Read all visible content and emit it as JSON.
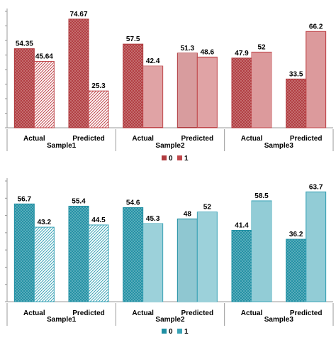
{
  "chart_data": [
    {
      "type": "bar",
      "palette": {
        "0": "#b03a3e",
        "1": "#c0474b"
      },
      "groups": [
        {
          "label": "Sample1",
          "categories": [
            "Actual",
            "Predicted"
          ]
        },
        {
          "label": "Sample2",
          "categories": [
            "Actual",
            "Predicted"
          ]
        },
        {
          "label": "Sample3",
          "categories": [
            "Actual",
            "Predicted"
          ]
        }
      ],
      "series": [
        {
          "name": "0",
          "values": [
            54.35,
            74.67,
            57.5,
            51.3,
            47.9,
            33.5
          ]
        },
        {
          "name": "1",
          "values": [
            45.64,
            25.3,
            42.4,
            48.6,
            52,
            66.2
          ]
        }
      ],
      "data_labels": {
        "0": [
          "54.35",
          "74.67",
          "57.5",
          "51.3",
          "47.9",
          "33.5"
        ],
        "1": [
          "45.64",
          "25.3",
          "42.4",
          "48.6",
          "52",
          "66.2"
        ]
      },
      "patterns": {
        "0": [
          "crosshatch",
          "crosshatch",
          "crosshatch",
          "hlines",
          "crosshatch",
          "crosshatch"
        ],
        "1": [
          "diagonal",
          "diagonal",
          "hlines",
          "hlines",
          "vlines",
          "vlines"
        ]
      },
      "ylim": [
        0,
        80
      ],
      "grid": false,
      "legend": {
        "position": "bottom",
        "entries": [
          "0",
          "1"
        ]
      }
    },
    {
      "type": "bar",
      "palette": {
        "0": "#1f8fa3",
        "1": "#3aa3b6"
      },
      "groups": [
        {
          "label": "Sample1",
          "categories": [
            "Actual",
            "Predicted"
          ]
        },
        {
          "label": "Sample2",
          "categories": [
            "Actual",
            "Predicted"
          ]
        },
        {
          "label": "Sample3",
          "categories": [
            "Actual",
            "Predicted"
          ]
        }
      ],
      "series": [
        {
          "name": "0",
          "values": [
            56.7,
            55.4,
            54.6,
            48,
            41.4,
            36.2
          ]
        },
        {
          "name": "1",
          "values": [
            43.2,
            44.5,
            45.3,
            52,
            58.5,
            63.7
          ]
        }
      ],
      "data_labels": {
        "0": [
          "56.7",
          "55.4",
          "54.6",
          "48",
          "41.4",
          "36.2"
        ],
        "1": [
          "43.2",
          "44.5",
          "45.3",
          "52",
          "58.5",
          "63.7"
        ]
      },
      "patterns": {
        "0": [
          "crosshatch",
          "crosshatch",
          "crosshatch",
          "hlines",
          "crosshatch",
          "crosshatch"
        ],
        "1": [
          "diagonal",
          "diagonal",
          "hlines",
          "hlines",
          "vlines",
          "vlines"
        ]
      },
      "ylim": [
        0,
        70
      ],
      "grid": false,
      "legend": {
        "position": "bottom",
        "entries": [
          "0",
          "1"
        ]
      }
    }
  ]
}
